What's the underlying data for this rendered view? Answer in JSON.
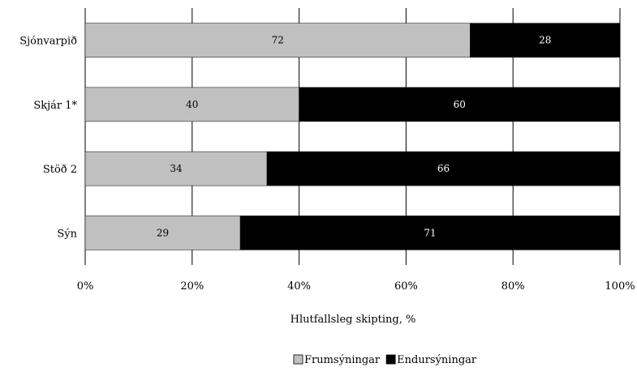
{
  "chart_data": {
    "type": "bar",
    "orientation": "horizontal",
    "stacked": true,
    "categories": [
      "Sjónvarpið",
      "Skjár 1*",
      "Stöð 2",
      "Sýn"
    ],
    "series": [
      {
        "name": "Frumsýningar",
        "values": [
          72,
          40,
          34,
          29
        ],
        "color": "#c0c0c0",
        "label_color": "#000000"
      },
      {
        "name": "Endursýningar",
        "values": [
          28,
          60,
          66,
          71
        ],
        "color": "#000000",
        "label_color": "#ffffff"
      }
    ],
    "xlabel": "Hlutfallsleg skipting, %",
    "xlim": [
      0,
      100
    ],
    "xticks": [
      "0%",
      "20%",
      "40%",
      "60%",
      "80%",
      "100%"
    ],
    "grid": "vertical",
    "legend": "bottom-center"
  }
}
